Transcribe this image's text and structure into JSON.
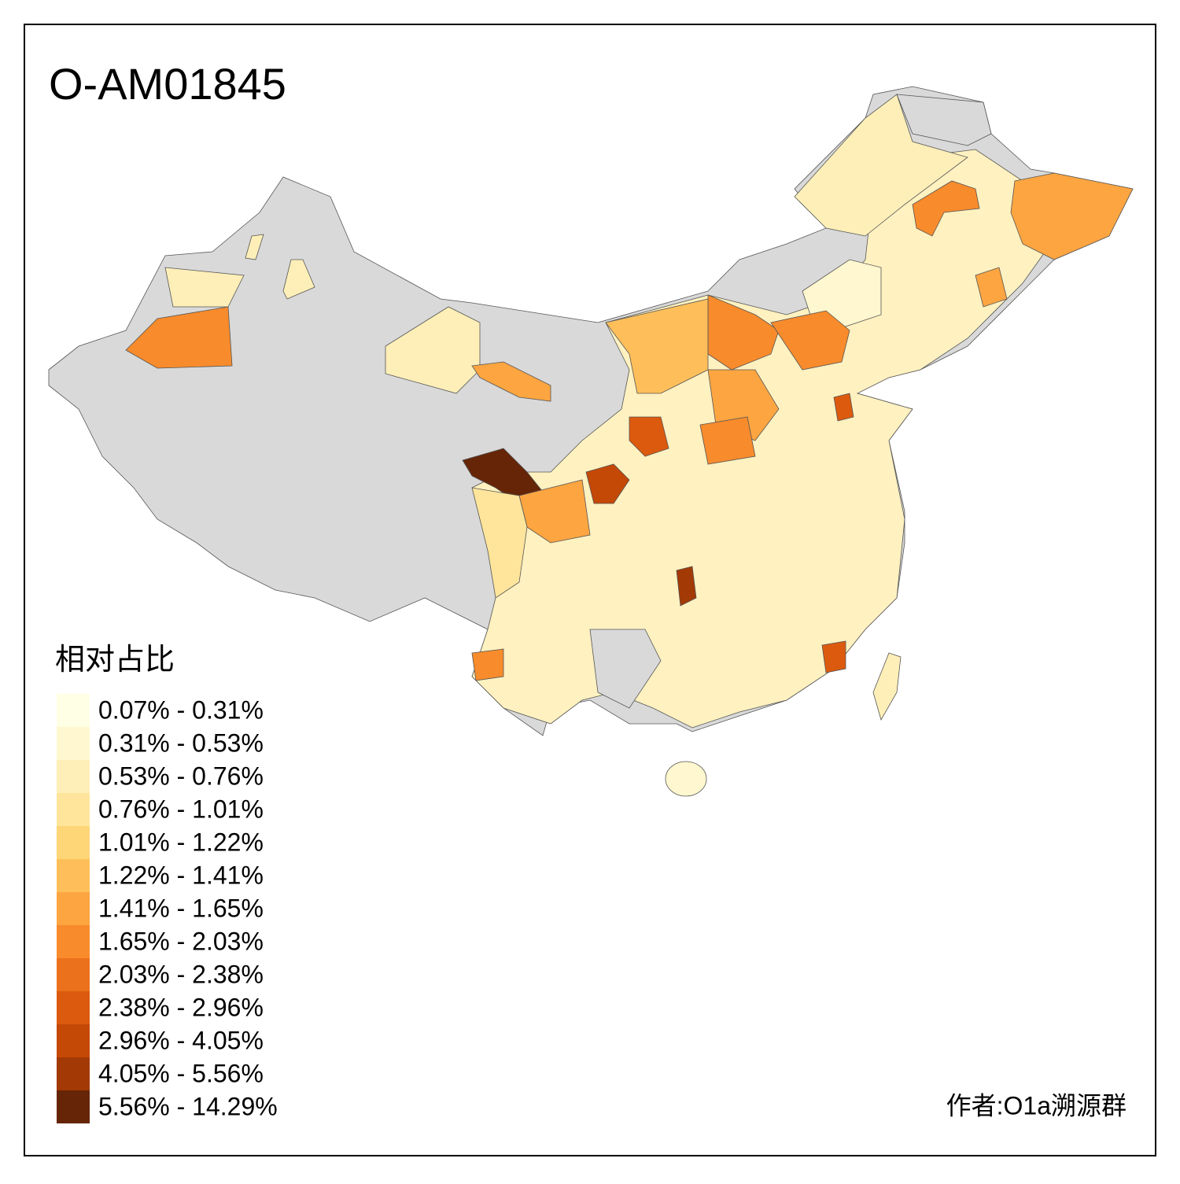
{
  "title": "O-AM01845",
  "legend": {
    "title": "相对占比",
    "entries": [
      {
        "label": "0.07% - 0.31%",
        "color": "#ffffe5"
      },
      {
        "label": "0.31% - 0.53%",
        "color": "#fff7cf"
      },
      {
        "label": "0.53% - 0.76%",
        "color": "#feefb8"
      },
      {
        "label": "0.76% - 1.01%",
        "color": "#fee59b"
      },
      {
        "label": "1.01% - 1.22%",
        "color": "#fed678"
      },
      {
        "label": "1.22% - 1.41%",
        "color": "#febf5a"
      },
      {
        "label": "1.41% - 1.65%",
        "color": "#fca541"
      },
      {
        "label": "1.65% - 2.03%",
        "color": "#f88b2c"
      },
      {
        "label": "2.03% - 2.38%",
        "color": "#ec711c"
      },
      {
        "label": "2.38% - 2.96%",
        "color": "#dc5a0e"
      },
      {
        "label": "2.96% - 4.05%",
        "color": "#c44806"
      },
      {
        "label": "4.05% - 5.56%",
        "color": "#a33904"
      },
      {
        "label": "5.56% - 14.29%",
        "color": "#662506"
      }
    ]
  },
  "author": "作者:O1a溯源群"
}
